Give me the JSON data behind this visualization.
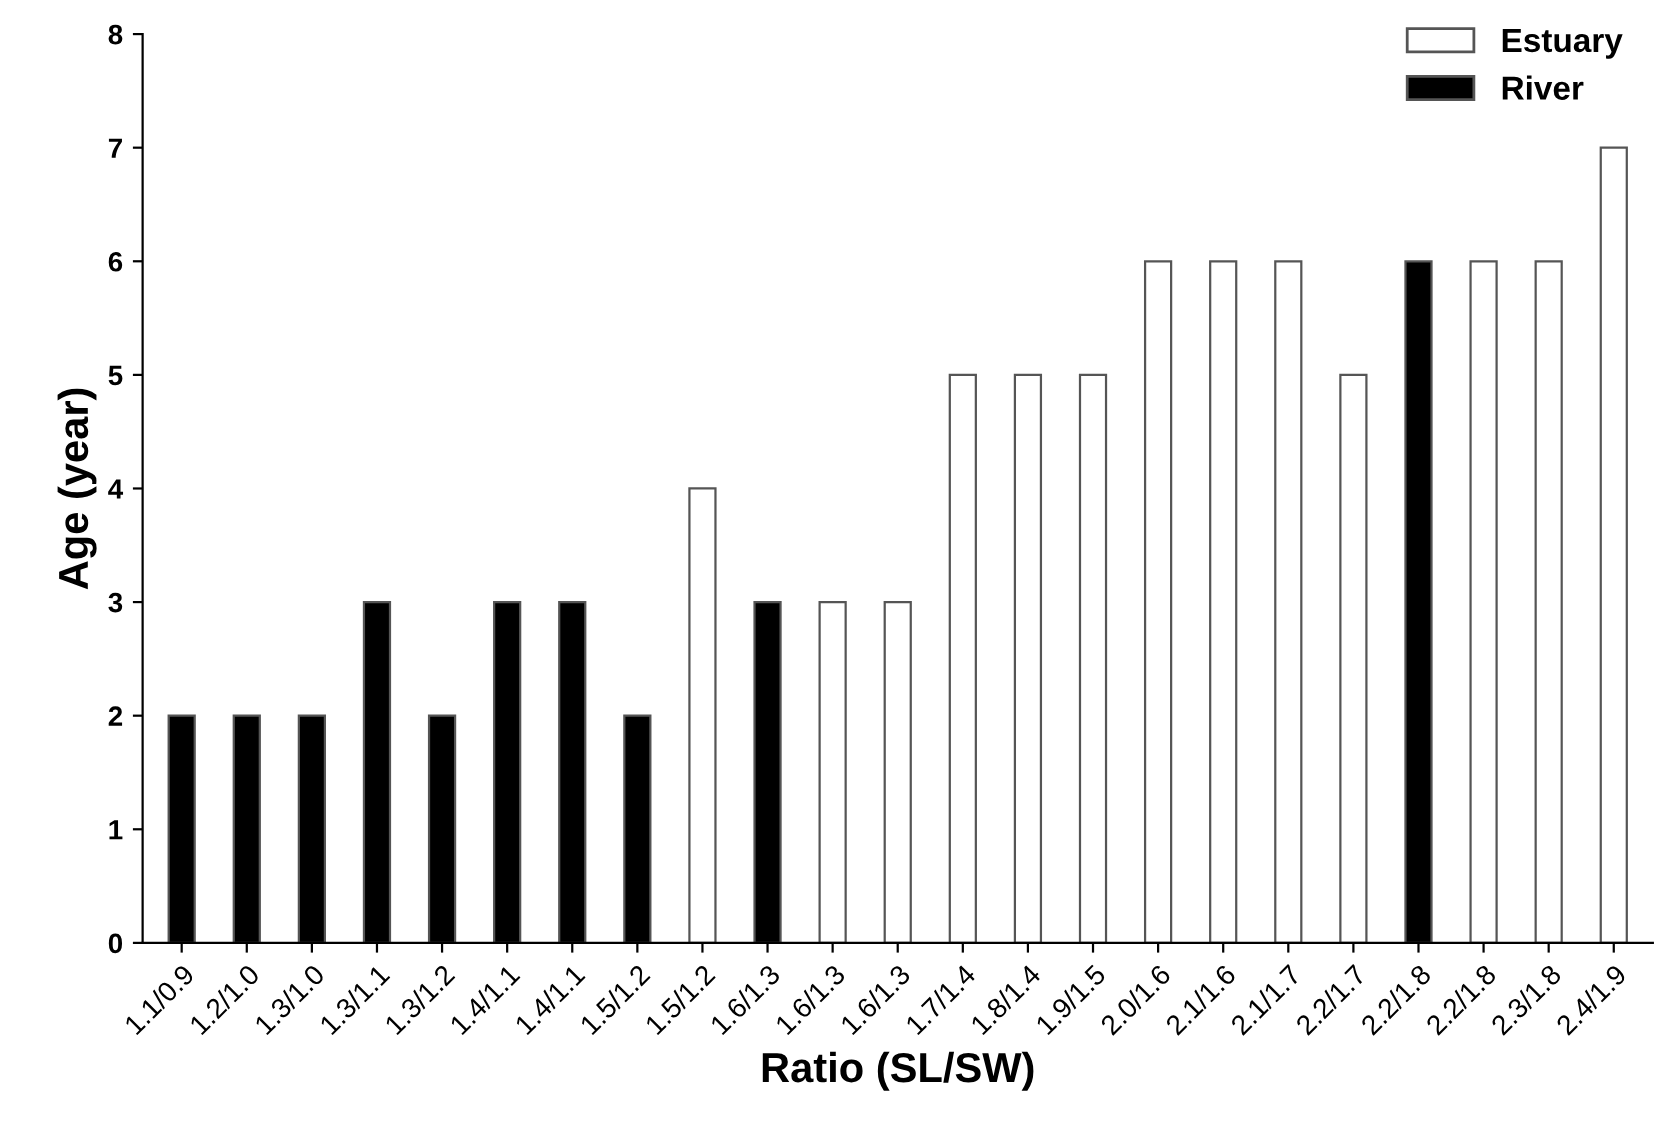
{
  "chart_data": {
    "type": "bar",
    "xlabel": "Ratio (SL/SW)",
    "ylabel": "Age (year)",
    "categories": [
      "1.1/0.9",
      "1.2/1.0",
      "1.3/1.0",
      "1.3/1.1",
      "1.3/1.2",
      "1.4/1.1",
      "1.4/1.1",
      "1.5/1.2",
      "1.5/1.2",
      "1.6/1.3",
      "1.6/1.3",
      "1.6/1.3",
      "1.7/1.4",
      "1.8/1.4",
      "1.9/1.5",
      "2.0/1.6",
      "2.1/1.6",
      "2.1/1.7",
      "2.2/1.7",
      "2.2/1.8",
      "2.2/1.8",
      "2.3/1.8",
      "2.4/1.9"
    ],
    "series": [
      {
        "name": "Estuary",
        "color": "#ffffff",
        "values": [
          null,
          null,
          null,
          null,
          null,
          null,
          null,
          null,
          4,
          null,
          3,
          3,
          5,
          5,
          5,
          6,
          6,
          6,
          5,
          null,
          6,
          6,
          7
        ]
      },
      {
        "name": "River",
        "color": "#000000",
        "values": [
          2,
          2,
          2,
          3,
          2,
          3,
          3,
          2,
          null,
          3,
          null,
          null,
          null,
          null,
          null,
          null,
          null,
          null,
          null,
          6,
          null,
          null,
          null
        ]
      }
    ],
    "ylim": [
      0,
      8
    ],
    "yticks": [
      0,
      1,
      2,
      3,
      4,
      5,
      6,
      7,
      8
    ],
    "grid": false,
    "legend": "top right"
  }
}
